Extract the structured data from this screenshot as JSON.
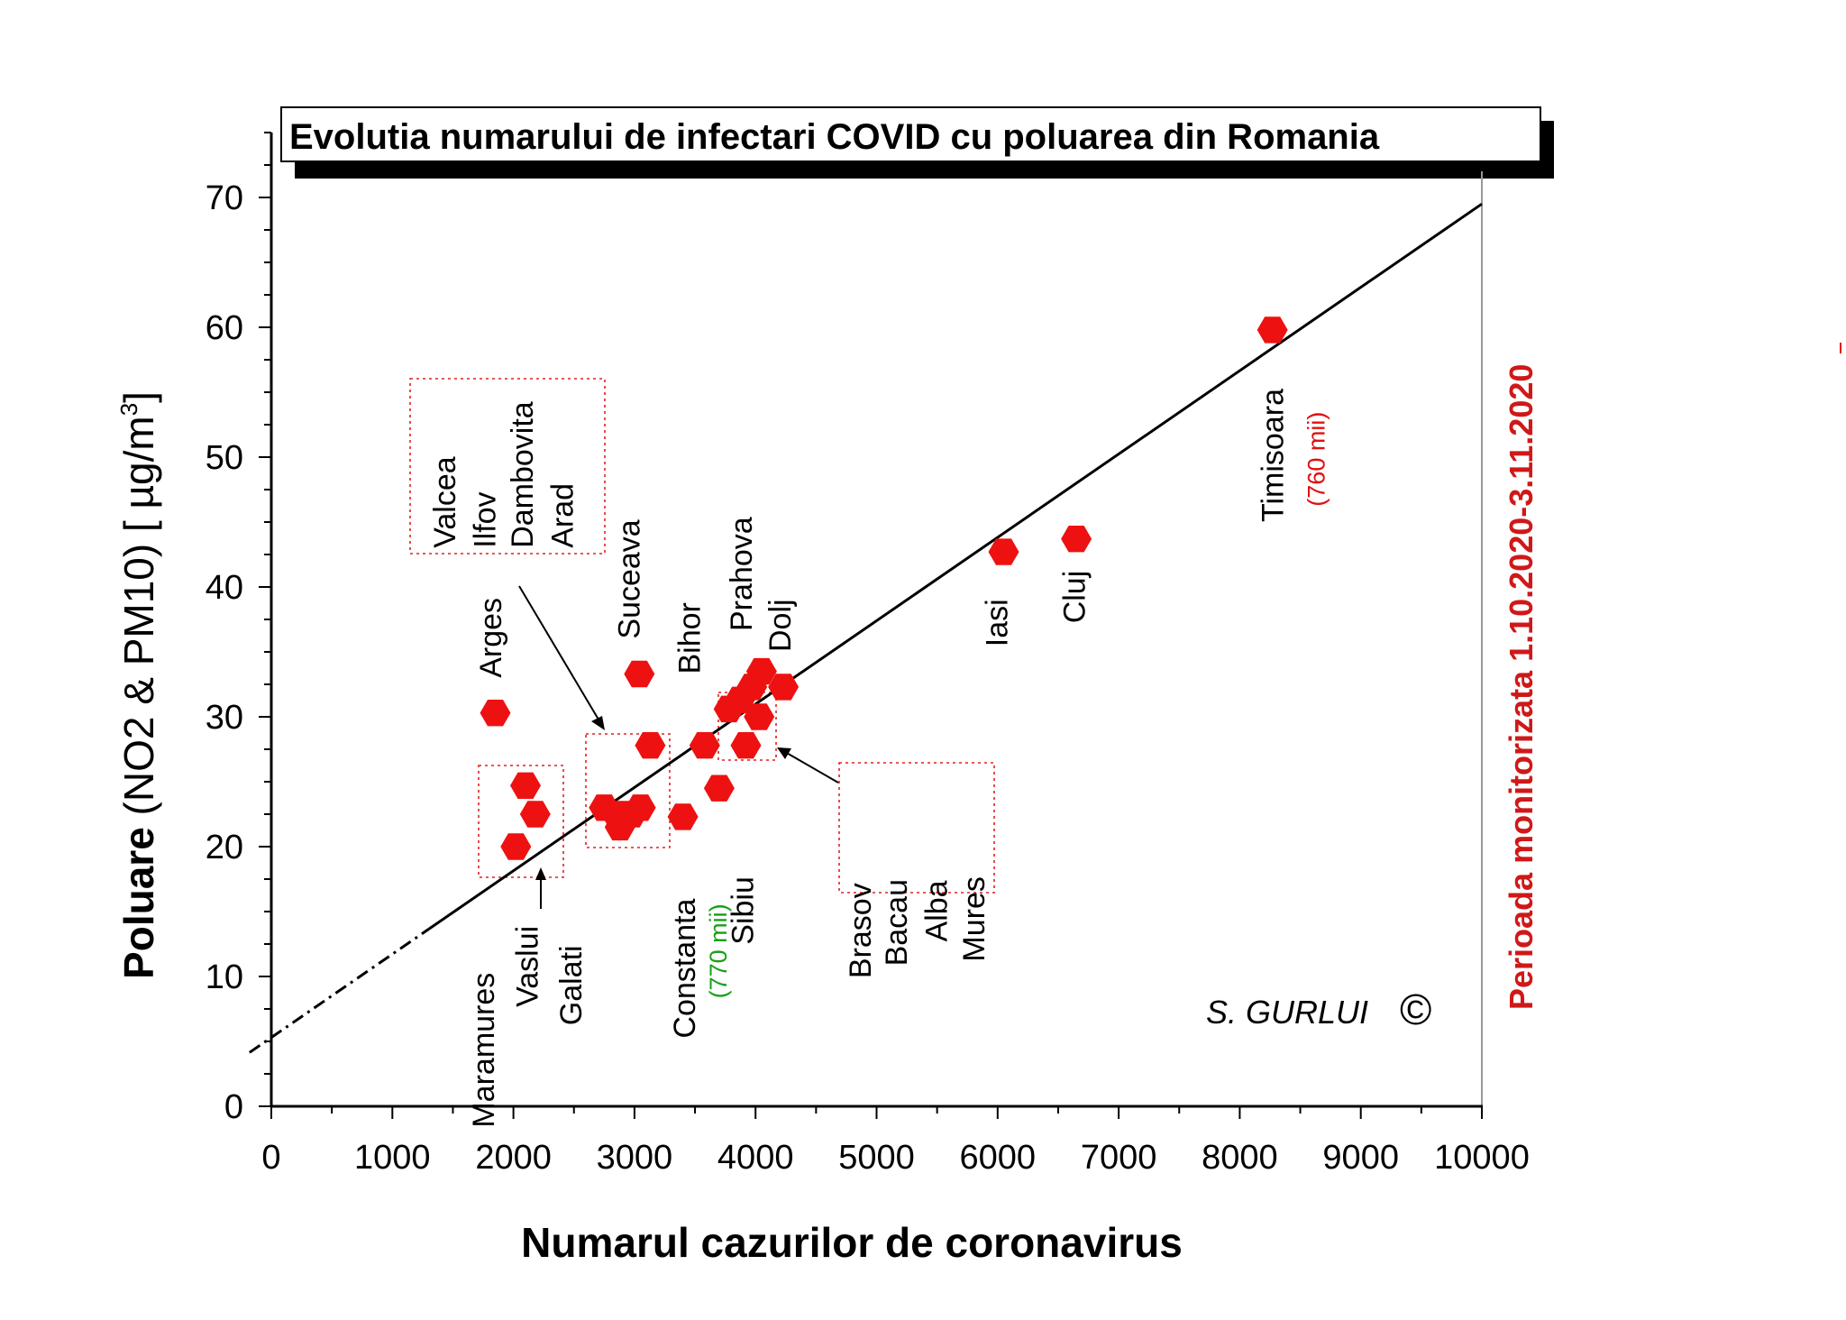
{
  "chart_data": {
    "type": "scatter",
    "title": "Evolutia numarului de infectari COVID cu poluarea din Romania",
    "xlabel": "Numarul cazurilor de coronavirus",
    "ylabel_bold": "Poluare",
    "ylabel_rest": " (NO2 & PM10) [ µg/m",
    "ylabel_sup": "3",
    "ylabel_end": "]",
    "xlim": [
      0,
      10000
    ],
    "ylim": [
      0,
      75
    ],
    "x_ticks": [
      "0",
      "1000",
      "2000",
      "3000",
      "4000",
      "5000",
      "6000",
      "7000",
      "8000",
      "9000",
      "10000"
    ],
    "y_ticks": [
      "0",
      "10",
      "20",
      "30",
      "40",
      "50",
      "60",
      "70"
    ],
    "points": [
      {
        "x": 1850,
        "y": 30.3
      },
      {
        "x": 2020,
        "y": 20.0
      },
      {
        "x": 2100,
        "y": 24.7
      },
      {
        "x": 2180,
        "y": 22.5
      },
      {
        "x": 2750,
        "y": 23.0
      },
      {
        "x": 2850,
        "y": 22.5
      },
      {
        "x": 2880,
        "y": 21.5
      },
      {
        "x": 2980,
        "y": 22.5
      },
      {
        "x": 3050,
        "y": 23.0
      },
      {
        "x": 3040,
        "y": 33.3
      },
      {
        "x": 3130,
        "y": 27.8
      },
      {
        "x": 3400,
        "y": 22.3
      },
      {
        "x": 3580,
        "y": 27.8
      },
      {
        "x": 3700,
        "y": 24.5
      },
      {
        "x": 3780,
        "y": 30.6
      },
      {
        "x": 3870,
        "y": 31.3
      },
      {
        "x": 3920,
        "y": 27.8
      },
      {
        "x": 3970,
        "y": 32.3
      },
      {
        "x": 4030,
        "y": 30.0
      },
      {
        "x": 4050,
        "y": 33.5
      },
      {
        "x": 4230,
        "y": 32.3
      },
      {
        "x": 6050,
        "y": 42.7
      },
      {
        "x": 6650,
        "y": 43.7
      },
      {
        "x": 8270,
        "y": 59.8
      }
    ],
    "fit_line": {
      "x0": 0,
      "y0": 5.3,
      "x1": 10000,
      "y1": 69.5,
      "dashed_until_x": 1300
    },
    "labels": [
      {
        "text": "Arges",
        "x": 1900,
        "y": 33.0,
        "color": "#000000",
        "anchor": "start"
      },
      {
        "text": "Suceava",
        "x": 3040,
        "y": 36.0,
        "color": "#000000",
        "anchor": "start"
      },
      {
        "text": "Bihor",
        "x": 3540,
        "y": 33.3,
        "color": "#000000",
        "anchor": "start"
      },
      {
        "text": "Prahova",
        "x": 3970,
        "y": 36.6,
        "color": "#000000",
        "anchor": "start"
      },
      {
        "text": "Dolj",
        "x": 4290,
        "y": 35.0,
        "color": "#000000",
        "anchor": "start"
      },
      {
        "text": "Iasi",
        "x": 6080,
        "y": 35.4,
        "color": "#000000",
        "anchor": "start"
      },
      {
        "text": "Cluj",
        "x": 6720,
        "y": 37.2,
        "color": "#000000",
        "anchor": "start"
      },
      {
        "text": "Valcea",
        "x": 1520,
        "y": 43.0,
        "color": "#000000",
        "anchor": "start"
      },
      {
        "text": "Ilfov",
        "x": 1850,
        "y": 43.0,
        "color": "#000000",
        "anchor": "start"
      },
      {
        "text": "Dambovita",
        "x": 2160,
        "y": 43.0,
        "color": "#000000",
        "anchor": "start"
      },
      {
        "text": "Arad",
        "x": 2490,
        "y": 43.0,
        "color": "#000000",
        "anchor": "start"
      },
      {
        "text": "Maramures",
        "x": 1840,
        "y": 10.3,
        "color": "#000000",
        "anchor": "end"
      },
      {
        "text": "Vaslui",
        "x": 2200,
        "y": 13.9,
        "color": "#000000",
        "anchor": "end"
      },
      {
        "text": "Galati",
        "x": 2560,
        "y": 12.4,
        "color": "#000000",
        "anchor": "end"
      },
      {
        "text": "Sibiu",
        "x": 3980,
        "y": 17.7,
        "color": "#000000",
        "anchor": "end"
      },
      {
        "text": "Brasov",
        "x": 4950,
        "y": 17.2,
        "color": "#000000",
        "anchor": "end"
      },
      {
        "text": "Bacau",
        "x": 5250,
        "y": 17.5,
        "color": "#000000",
        "anchor": "end"
      },
      {
        "text": "Alba",
        "x": 5580,
        "y": 17.4,
        "color": "#000000",
        "anchor": "end"
      },
      {
        "text": "Mures",
        "x": 5890,
        "y": 17.7,
        "color": "#000000",
        "anchor": "end"
      },
      {
        "text": "Constanta",
        "x": 3500,
        "y": 16.0,
        "color": "#18a018",
        "anchor": "end"
      },
      {
        "text": "Timisoara",
        "x": 8360,
        "y": 45.0,
        "color": "#e01010",
        "anchor": "start"
      }
    ],
    "sublabels": [
      {
        "text": "(770 mii)",
        "x": 3760,
        "y": 15.6,
        "color": "#18a018",
        "anchor": "end"
      },
      {
        "text": "(760 mii)",
        "x": 8700,
        "y": 46.2,
        "color": "#e01010",
        "anchor": "start"
      }
    ],
    "side_text": "Perioada monitorizata 1.10.2020-3.11.2020",
    "signature": "S. GURLUI",
    "copyright": "©",
    "colors": {
      "marker": "#ee1111",
      "side_text": "#d01818",
      "box": "#e02020"
    }
  }
}
